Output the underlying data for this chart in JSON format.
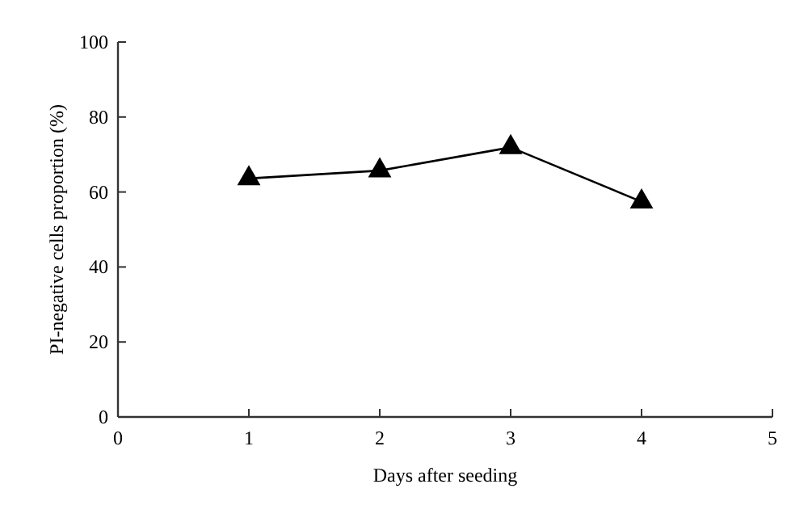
{
  "chart_data": {
    "type": "line",
    "xlabel": "Days after seeding",
    "ylabel": "PI-negative cells proportion (%)",
    "x": [
      1,
      2,
      3,
      4
    ],
    "series": [
      {
        "color": "#000000",
        "values": [
          63.6,
          65.7,
          71.9,
          57.4
        ]
      }
    ],
    "xlim": [
      0,
      5
    ],
    "xticks": [
      0,
      1,
      2,
      3,
      4,
      5
    ],
    "ylim": [
      0,
      100
    ],
    "yticks": [
      0,
      20,
      40,
      60,
      80,
      100
    ],
    "marker": "triangle",
    "line_style": "solid",
    "grid": false
  }
}
